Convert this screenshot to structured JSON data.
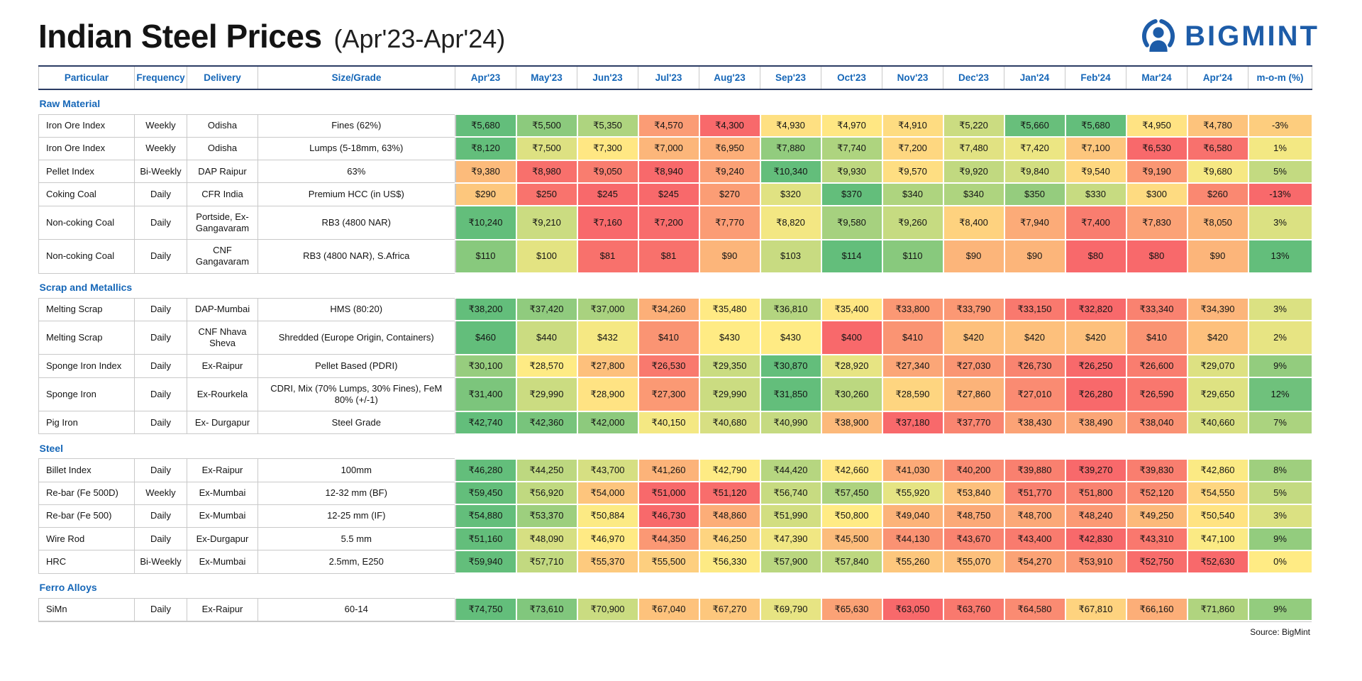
{
  "page": {
    "title": "Indian Steel Prices",
    "subtitle": "(Apr'23-Apr'24)",
    "brand": {
      "name": "BIGMINT",
      "color": "#1d5ca8",
      "icon": "person-refresh-icon"
    },
    "source_note": "Source: BigMint"
  },
  "chart_data": {
    "type": "table",
    "title": "Indian Steel Prices (Apr'23-Apr'24)",
    "columns": [
      "Particular",
      "Frequency",
      "Delivery",
      "Size/Grade",
      "Apr'23",
      "May'23",
      "Jun'23",
      "Jul'23",
      "Aug'23",
      "Sep'23",
      "Oct'23",
      "Nov'23",
      "Dec'23",
      "Jan'24",
      "Feb'24",
      "Mar'24",
      "Apr'24",
      "m-o-m (%)"
    ],
    "heatmap": {
      "low_color": "#f8696b",
      "mid_color": "#ffeb84",
      "high_color": "#63be7b",
      "row_scale": "min-to-max per row",
      "mom_scale": "min-to-max across m-o-m column"
    },
    "sections": [
      {
        "name": "Raw Material",
        "rows": [
          {
            "particular": "Iron Ore Index",
            "frequency": "Weekly",
            "delivery": "Odisha",
            "size_grade": "Fines (62%)",
            "currency": "₹",
            "values": [
              5680,
              5500,
              5350,
              4570,
              4300,
              4930,
              4970,
              4910,
              5220,
              5660,
              5680,
              4950,
              4780
            ],
            "mom_pct": -3
          },
          {
            "particular": "Iron Ore Index",
            "frequency": "Weekly",
            "delivery": "Odisha",
            "size_grade": "Lumps (5-18mm, 63%)",
            "currency": "₹",
            "values": [
              8120,
              7500,
              7300,
              7000,
              6950,
              7880,
              7740,
              7200,
              7480,
              7420,
              7100,
              6530,
              6580
            ],
            "mom_pct": 1
          },
          {
            "particular": "Pellet Index",
            "frequency": "Bi-Weekly",
            "delivery": "DAP Raipur",
            "size_grade": "63%",
            "currency": "₹",
            "values": [
              9380,
              8980,
              9050,
              8940,
              9240,
              10340,
              9930,
              9570,
              9920,
              9840,
              9540,
              9190,
              9680
            ],
            "mom_pct": 5
          },
          {
            "particular": "Coking Coal",
            "frequency": "Daily",
            "delivery": "CFR India",
            "size_grade": "Premium HCC (in US$)",
            "currency": "$",
            "values": [
              290,
              250,
              245,
              245,
              270,
              320,
              370,
              340,
              340,
              350,
              330,
              300,
              260
            ],
            "mom_pct": -13
          },
          {
            "particular": "Non-coking Coal",
            "frequency": "Daily",
            "delivery": "Portside, Ex-Gangavaram",
            "size_grade": "RB3 (4800 NAR)",
            "currency": "₹",
            "values": [
              10240,
              9210,
              7160,
              7200,
              7770,
              8820,
              9580,
              9260,
              8400,
              7940,
              7400,
              7830,
              8050
            ],
            "mom_pct": 3
          },
          {
            "particular": "Non-coking Coal",
            "frequency": "Daily",
            "delivery": "CNF Gangavaram",
            "size_grade": "RB3 (4800 NAR), S.Africa",
            "currency": "$",
            "values": [
              110,
              100,
              81,
              81,
              90,
              103,
              114,
              110,
              90,
              90,
              80,
              80,
              90
            ],
            "mom_pct": 13
          }
        ]
      },
      {
        "name": "Scrap and Metallics",
        "rows": [
          {
            "particular": "Melting Scrap",
            "frequency": "Daily",
            "delivery": "DAP-Mumbai",
            "size_grade": "HMS (80:20)",
            "currency": "₹",
            "values": [
              38200,
              37420,
              37000,
              34260,
              35480,
              36810,
              35400,
              33800,
              33790,
              33150,
              32820,
              33340,
              34390
            ],
            "mom_pct": 3
          },
          {
            "particular": "Melting Scrap",
            "frequency": "Daily",
            "delivery": "CNF Nhava Sheva",
            "size_grade": "Shredded (Europe Origin, Containers)",
            "currency": "$",
            "values": [
              460,
              440,
              432,
              410,
              430,
              430,
              400,
              410,
              420,
              420,
              420,
              410,
              420
            ],
            "mom_pct": 2
          },
          {
            "particular": "Sponge Iron Index",
            "frequency": "Daily",
            "delivery": "Ex-Raipur",
            "size_grade": "Pellet Based (PDRI)",
            "currency": "₹",
            "values": [
              30100,
              28570,
              27800,
              26530,
              29350,
              30870,
              28920,
              27340,
              27030,
              26730,
              26250,
              26600,
              29070
            ],
            "mom_pct": 9
          },
          {
            "particular": "Sponge Iron",
            "frequency": "Daily",
            "delivery": "Ex-Rourkela",
            "size_grade": "CDRI, Mix (70% Lumps, 30% Fines), FeM 80% (+/-1)",
            "currency": "₹",
            "values": [
              31400,
              29990,
              28900,
              27300,
              29990,
              31850,
              30260,
              28590,
              27860,
              27010,
              26280,
              26590,
              29650
            ],
            "mom_pct": 12
          },
          {
            "particular": "Pig Iron",
            "frequency": "Daily",
            "delivery": "Ex- Durgapur",
            "size_grade": "Steel Grade",
            "currency": "₹",
            "values": [
              42740,
              42360,
              42000,
              40150,
              40680,
              40990,
              38900,
              37180,
              37770,
              38430,
              38490,
              38040,
              40660
            ],
            "mom_pct": 7
          }
        ]
      },
      {
        "name": "Steel",
        "rows": [
          {
            "particular": "Billet Index",
            "frequency": "Daily",
            "delivery": "Ex-Raipur",
            "size_grade": "100mm",
            "currency": "₹",
            "values": [
              46280,
              44250,
              43700,
              41260,
              42790,
              44420,
              42660,
              41030,
              40200,
              39880,
              39270,
              39830,
              42860
            ],
            "mom_pct": 8
          },
          {
            "particular": "Re-bar (Fe 500D)",
            "frequency": "Weekly",
            "delivery": "Ex-Mumbai",
            "size_grade": "12-32 mm (BF)",
            "currency": "₹",
            "values": [
              59450,
              56920,
              54000,
              51000,
              51120,
              56740,
              57450,
              55920,
              53840,
              51770,
              51800,
              52120,
              54550
            ],
            "mom_pct": 5
          },
          {
            "particular": "Re-bar (Fe 500)",
            "frequency": "Daily",
            "delivery": "Ex-Mumbai",
            "size_grade": "12-25 mm (IF)",
            "currency": "₹",
            "values": [
              54880,
              53370,
              50884,
              46730,
              48860,
              51990,
              50800,
              49040,
              48750,
              48700,
              48240,
              49250,
              50540
            ],
            "mom_pct": 3
          },
          {
            "particular": "Wire Rod",
            "frequency": "Daily",
            "delivery": "Ex-Durgapur",
            "size_grade": "5.5 mm",
            "currency": "₹",
            "values": [
              51160,
              48090,
              46970,
              44350,
              46250,
              47390,
              45500,
              44130,
              43670,
              43400,
              42830,
              43310,
              47100
            ],
            "mom_pct": 9
          },
          {
            "particular": "HRC",
            "frequency": "Bi-Weekly",
            "delivery": "Ex-Mumbai",
            "size_grade": "2.5mm, E250",
            "currency": "₹",
            "values": [
              59940,
              57710,
              55370,
              55500,
              56330,
              57900,
              57840,
              55260,
              55070,
              54270,
              53910,
              52750,
              52630
            ],
            "mom_pct": 0
          }
        ]
      },
      {
        "name": "Ferro Alloys",
        "rows": [
          {
            "particular": "SiMn",
            "frequency": "Daily",
            "delivery": "Ex-Raipur",
            "size_grade": "60-14",
            "currency": "₹",
            "values": [
              74750,
              73610,
              70900,
              67040,
              67270,
              69790,
              65630,
              63050,
              63760,
              64580,
              67810,
              66160,
              71860
            ],
            "mom_pct": 9
          }
        ]
      }
    ]
  }
}
